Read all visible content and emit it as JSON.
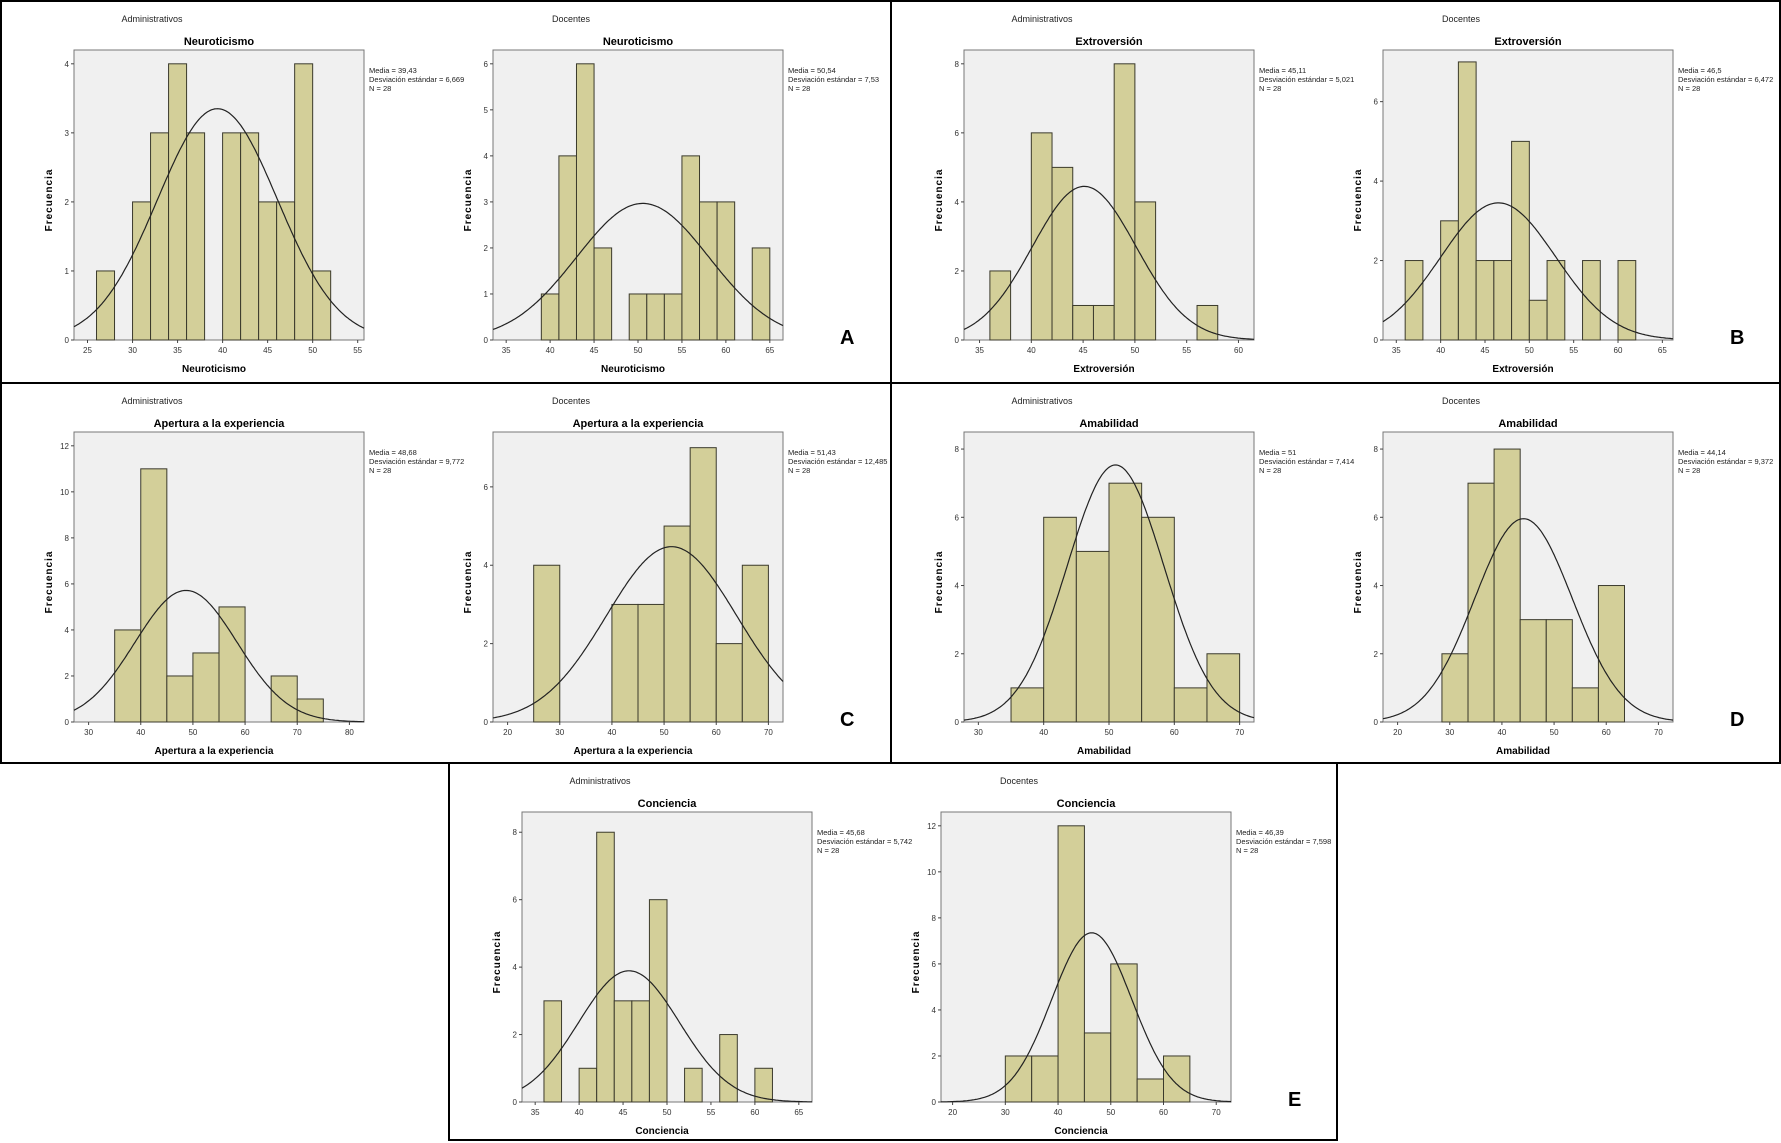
{
  "panels": [
    {
      "letter": "A",
      "charts": [
        0,
        1
      ]
    },
    {
      "letter": "B",
      "charts": [
        2,
        3
      ]
    },
    {
      "letter": "C",
      "charts": [
        4,
        5
      ]
    },
    {
      "letter": "D",
      "charts": [
        6,
        7
      ]
    },
    {
      "letter": "E",
      "charts": [
        8,
        9
      ]
    }
  ],
  "colors": {
    "plot_bg": "#f0f0f0",
    "bar_fill": "#d3cf99",
    "bar_stroke": "#3b3a2c",
    "curve": "#222222"
  },
  "chart_data": [
    {
      "type": "bar",
      "group": "Administrativos",
      "title": "Neuroticismo",
      "xlabel": "Neuroticismo",
      "ylabel": "Frecuencia",
      "stats": [
        "Media = 39,43",
        "Desviación estándar = 6,669",
        "N = 28"
      ],
      "mean": 39.43,
      "sd": 6.669,
      "n": 28,
      "bin_start": 26,
      "bin_width": 2,
      "counts": [
        1,
        0,
        2,
        3,
        4,
        3,
        0,
        3,
        3,
        2,
        2,
        4,
        1
      ],
      "xlim": [
        23.5,
        55.7
      ],
      "ylim": [
        0,
        4.2
      ],
      "xticks": [
        25,
        30,
        35,
        40,
        45,
        50,
        55
      ],
      "yticks": [
        0,
        1,
        2,
        3,
        4
      ],
      "grid": false
    },
    {
      "type": "bar",
      "group": "Docentes",
      "title": "Neuroticismo",
      "xlabel": "Neuroticismo",
      "ylabel": "Frecuencia",
      "stats": [
        "Media = 50,54",
        "Desviación estándar = 7,53",
        "N = 28"
      ],
      "mean": 50.54,
      "sd": 7.53,
      "n": 28,
      "bin_start": 39,
      "bin_width": 2,
      "counts": [
        1,
        4,
        6,
        2,
        0,
        1,
        1,
        1,
        4,
        3,
        3,
        0,
        2
      ],
      "xlim": [
        33.5,
        66.5
      ],
      "ylim": [
        0,
        6.3
      ],
      "xticks": [
        35,
        40,
        45,
        50,
        55,
        60,
        65
      ],
      "yticks": [
        0,
        1,
        2,
        3,
        4,
        5,
        6
      ],
      "grid": false
    },
    {
      "type": "bar",
      "group": "Administrativos",
      "title": "Extroversión",
      "xlabel": "Extroversión",
      "ylabel": "Frecuencia",
      "stats": [
        "Media = 45,11",
        "Desviación estándar = 5,021",
        "N = 28"
      ],
      "mean": 45.11,
      "sd": 5.021,
      "n": 28,
      "bin_start": 36,
      "bin_width": 2,
      "counts": [
        2,
        0,
        6,
        5,
        1,
        1,
        8,
        4,
        0,
        0,
        1
      ],
      "xlim": [
        33.5,
        61.5
      ],
      "ylim": [
        0,
        8.4
      ],
      "xticks": [
        35,
        40,
        45,
        50,
        55,
        60
      ],
      "yticks": [
        0,
        2,
        4,
        6,
        8
      ],
      "grid": false
    },
    {
      "type": "bar",
      "group": "Docentes",
      "title": "Extroversión",
      "xlabel": "Extroversión",
      "ylabel": "Frecuencia",
      "stats": [
        "Media = 46,5",
        "Desviación estándar = 6,472",
        "N = 28"
      ],
      "mean": 46.5,
      "sd": 6.472,
      "n": 28,
      "bin_start": 36,
      "bin_width": 2,
      "counts": [
        2,
        0,
        3,
        7,
        2,
        2,
        5,
        1,
        2,
        0,
        2,
        0,
        2
      ],
      "xlim": [
        33.5,
        66.2
      ],
      "ylim": [
        0,
        7.3
      ],
      "xticks": [
        35,
        40,
        45,
        50,
        55,
        60,
        65
      ],
      "yticks": [
        0,
        2,
        4,
        6
      ],
      "grid": false
    },
    {
      "type": "bar",
      "group": "Administrativos",
      "title": "Apertura a la experiencia",
      "xlabel": "Apertura a la experiencia",
      "ylabel": "Frecuencia",
      "stats": [
        "Media = 48,68",
        "Desviación estándar = 9,772",
        "N = 28"
      ],
      "mean": 48.68,
      "sd": 9.772,
      "n": 28,
      "bin_start": 35,
      "bin_width": 5,
      "counts": [
        4,
        11,
        2,
        3,
        5,
        0,
        2,
        1
      ],
      "xlim": [
        27.2,
        82.8
      ],
      "ylim": [
        0,
        12.6
      ],
      "xticks": [
        30,
        40,
        50,
        60,
        70,
        80
      ],
      "yticks": [
        0,
        2,
        4,
        6,
        8,
        10,
        12
      ],
      "grid": false
    },
    {
      "type": "bar",
      "group": "Docentes",
      "title": "Apertura a la experiencia",
      "xlabel": "Apertura a la experiencia",
      "ylabel": "Frecuencia",
      "stats": [
        "Media = 51,43",
        "Desviación estándar = 12,485",
        "N = 28"
      ],
      "mean": 51.43,
      "sd": 12.485,
      "n": 28,
      "bin_start": 25,
      "bin_width": 5,
      "counts": [
        4,
        0,
        0,
        3,
        3,
        5,
        7,
        2,
        4
      ],
      "xlim": [
        17.2,
        72.8
      ],
      "ylim": [
        0,
        7.4
      ],
      "xticks": [
        20,
        30,
        40,
        50,
        60,
        70
      ],
      "yticks": [
        0,
        2,
        4,
        6
      ],
      "grid": false
    },
    {
      "type": "bar",
      "group": "Administrativos",
      "title": "Amabilidad",
      "xlabel": "Amabilidad",
      "ylabel": "Frecuencia",
      "stats": [
        "Media = 51",
        "Desviación estándar = 7,414",
        "N = 28"
      ],
      "mean": 51,
      "sd": 7.414,
      "n": 28,
      "bin_start": 35,
      "bin_width": 5,
      "counts": [
        1,
        6,
        5,
        7,
        6,
        1,
        2
      ],
      "xlim": [
        27.8,
        72.2
      ],
      "ylim": [
        0,
        8.5
      ],
      "xticks": [
        30,
        40,
        50,
        60,
        70
      ],
      "yticks": [
        0,
        2,
        4,
        6,
        8
      ],
      "grid": false
    },
    {
      "type": "bar",
      "group": "Docentes",
      "title": "Amabilidad",
      "xlabel": "Amabilidad",
      "ylabel": "Frecuencia",
      "stats": [
        "Media = 44,14",
        "Desviación estándar = 9,372",
        "N = 28"
      ],
      "mean": 44.14,
      "sd": 9.372,
      "n": 28,
      "bin_start": 28.5,
      "bin_width": 5,
      "counts": [
        2,
        7,
        8,
        3,
        3,
        1,
        4
      ],
      "xlim": [
        17.2,
        72.8
      ],
      "ylim": [
        0,
        8.5
      ],
      "xticks": [
        20,
        30,
        40,
        50,
        60,
        70
      ],
      "yticks": [
        0,
        2,
        4,
        6,
        8
      ],
      "grid": false
    },
    {
      "type": "bar",
      "group": "Administrativos",
      "title": "Conciencia",
      "xlabel": "Conciencia",
      "ylabel": "Frecuencia",
      "stats": [
        "Media = 45,68",
        "Desviación estándar = 5,742",
        "N = 28"
      ],
      "mean": 45.68,
      "sd": 5.742,
      "n": 28,
      "bin_start": 36,
      "bin_width": 2,
      "counts": [
        3,
        0,
        1,
        8,
        3,
        3,
        6,
        0,
        1,
        0,
        2,
        0,
        1
      ],
      "xlim": [
        33.5,
        66.5
      ],
      "ylim": [
        0,
        8.6
      ],
      "xticks": [
        35,
        40,
        45,
        50,
        55,
        60,
        65
      ],
      "yticks": [
        0,
        2,
        4,
        6,
        8
      ],
      "grid": false
    },
    {
      "type": "bar",
      "group": "Docentes",
      "title": "Conciencia",
      "xlabel": "Conciencia",
      "ylabel": "Frecuencia",
      "stats": [
        "Media = 46,39",
        "Desviación estándar = 7,598",
        "N = 28"
      ],
      "mean": 46.39,
      "sd": 7.598,
      "n": 28,
      "bin_start": 30,
      "bin_width": 5,
      "counts": [
        2,
        2,
        12,
        3,
        6,
        1,
        2
      ],
      "xlim": [
        17.8,
        72.8
      ],
      "ylim": [
        0,
        12.6
      ],
      "xticks": [
        20,
        30,
        40,
        50,
        60,
        70
      ],
      "yticks": [
        0,
        2,
        4,
        6,
        8,
        10,
        12
      ],
      "grid": false
    }
  ]
}
